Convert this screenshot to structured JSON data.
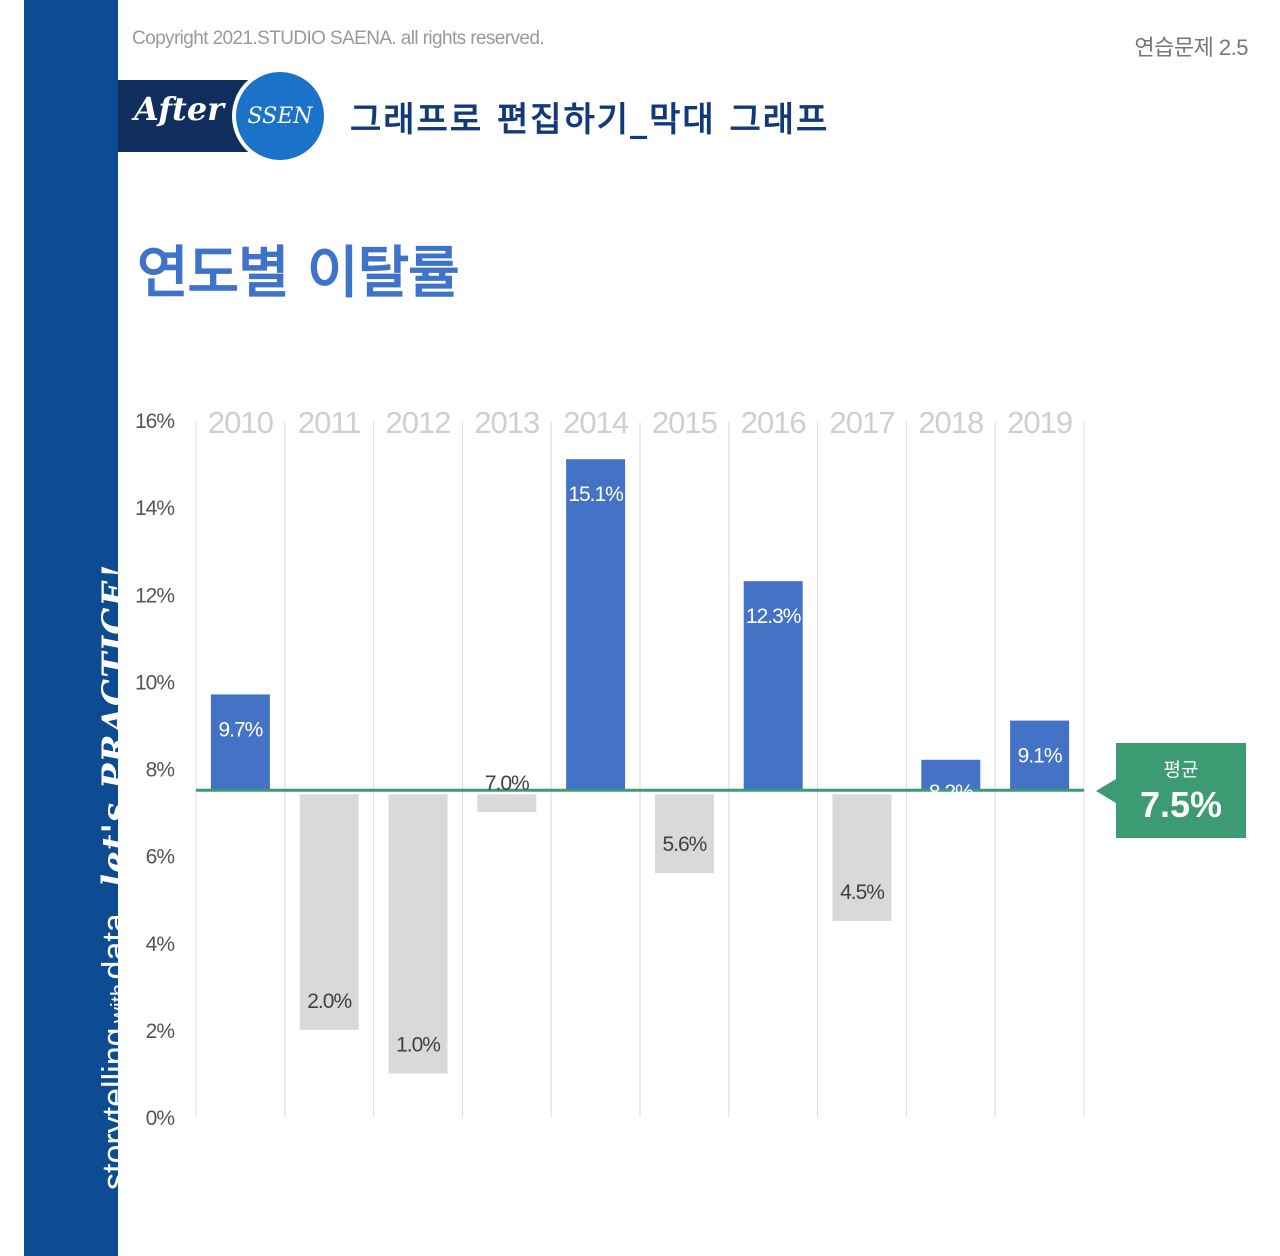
{
  "header": {
    "copyright": "Copyright 2021.STUDIO SAENA. all rights reserved.",
    "exercise": "연습문제 2.5",
    "badge_after": "After",
    "badge_ssen": "SSEN",
    "subtitle": "그래프로 편집하기_막대 그래프"
  },
  "sidebar": {
    "brand_part1": "storytelling",
    "brand_part2": "with",
    "brand_part3": "data",
    "tagline": "let's PRACTICE!"
  },
  "colors": {
    "above": "#4472c4",
    "below": "#d9d9d9",
    "average": "#3d9b73",
    "sidebar": "#0d4b92"
  },
  "chart_data": {
    "type": "bar",
    "title": "연도별 이탈률",
    "categories": [
      "2010",
      "2011",
      "2012",
      "2013",
      "2014",
      "2015",
      "2016",
      "2017",
      "2018",
      "2019"
    ],
    "values": [
      9.7,
      2.0,
      1.0,
      7.0,
      15.1,
      5.6,
      12.3,
      4.5,
      8.2,
      9.1
    ],
    "value_labels": [
      "9.7%",
      "2.0%",
      "1.0%",
      "7.0%",
      "15.1%",
      "5.6%",
      "12.3%",
      "4.5%",
      "8.2%",
      "9.1%"
    ],
    "baseline": 7.5,
    "ylim": [
      0,
      16
    ],
    "yticks": [
      0,
      2,
      4,
      6,
      8,
      10,
      12,
      14,
      16
    ],
    "ytick_labels": [
      "0%",
      "2%",
      "4%",
      "6%",
      "8%",
      "10%",
      "12%",
      "14%",
      "16%"
    ],
    "xlabel": "",
    "ylabel": "",
    "category_axis": "top",
    "average": {
      "label": "평균",
      "value_label": "7.5%"
    }
  }
}
